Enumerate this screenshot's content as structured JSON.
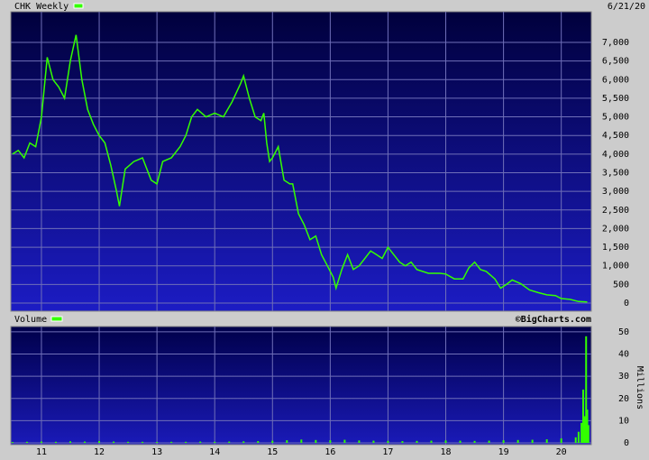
{
  "chart_data": [
    {
      "type": "line",
      "title": "CHK Weekly",
      "subtitle": "6/21/20",
      "color": "#33ff00",
      "grid": true,
      "x": [
        10.5,
        10.6,
        10.7,
        10.8,
        10.9,
        11.0,
        11.1,
        11.2,
        11.3,
        11.4,
        11.5,
        11.6,
        11.7,
        11.8,
        11.9,
        12.0,
        12.1,
        12.2,
        12.3,
        12.35,
        12.45,
        12.6,
        12.75,
        12.9,
        13.0,
        13.1,
        13.25,
        13.4,
        13.5,
        13.6,
        13.7,
        13.85,
        14.0,
        14.15,
        14.3,
        14.45,
        14.5,
        14.6,
        14.7,
        14.8,
        14.85,
        14.9,
        14.95,
        15.0,
        15.1,
        15.2,
        15.3,
        15.35,
        15.45,
        15.55,
        15.65,
        15.75,
        15.85,
        15.95,
        16.05,
        16.1,
        16.2,
        16.3,
        16.4,
        16.5,
        16.6,
        16.7,
        16.8,
        16.9,
        17.0,
        17.1,
        17.2,
        17.3,
        17.4,
        17.5,
        17.7,
        17.9,
        18.0,
        18.15,
        18.3,
        18.4,
        18.5,
        18.6,
        18.7,
        18.85,
        18.95,
        19.05,
        19.15,
        19.3,
        19.45,
        19.6,
        19.75,
        19.9,
        20.0,
        20.15,
        20.3,
        20.45
      ],
      "values": [
        4000,
        4100,
        3900,
        4300,
        4200,
        5000,
        6600,
        6000,
        5800,
        5500,
        6500,
        7200,
        6000,
        5200,
        4800,
        4500,
        4300,
        3700,
        3000,
        2600,
        3600,
        3800,
        3900,
        3300,
        3200,
        3800,
        3900,
        4200,
        4500,
        5000,
        5200,
        5000,
        5100,
        5000,
        5400,
        5900,
        6100,
        5500,
        5000,
        4900,
        5100,
        4300,
        3800,
        3900,
        4200,
        3300,
        3200,
        3200,
        2400,
        2100,
        1700,
        1800,
        1300,
        1000,
        700,
        400,
        900,
        1300,
        900,
        1000,
        1200,
        1400,
        1300,
        1200,
        1500,
        1300,
        1100,
        1000,
        1100,
        900,
        800,
        800,
        780,
        650,
        650,
        950,
        1100,
        900,
        850,
        650,
        400,
        500,
        620,
        520,
        350,
        280,
        220,
        200,
        120,
        100,
        40,
        30
      ],
      "xlim": [
        10.47,
        20.52
      ],
      "xticks": [
        11,
        12,
        13,
        14,
        15,
        16,
        17,
        18,
        19,
        20
      ],
      "ylim": [
        -218,
        7823
      ],
      "yticks": [
        0,
        500,
        {
          "value": 1000,
          "label": "1,000"
        },
        {
          "value": 1500,
          "label": "1,500"
        },
        {
          "value": 2000,
          "label": "2,000"
        },
        {
          "value": 2500,
          "label": "2,500"
        },
        {
          "value": 3000,
          "label": "3,000"
        },
        {
          "value": 3500,
          "label": "3,500"
        },
        {
          "value": 4000,
          "label": "4,000"
        },
        {
          "value": 4500,
          "label": "4,500"
        },
        {
          "value": 5000,
          "label": "5,000"
        },
        {
          "value": 5500,
          "label": "5,500"
        },
        {
          "value": 6000,
          "label": "6,000"
        },
        {
          "value": 6500,
          "label": "6,500"
        },
        {
          "value": 7000,
          "label": "7,000"
        }
      ]
    },
    {
      "type": "bar",
      "title": "Volume",
      "annotation": "©BigCharts.com",
      "y_label": "Millions",
      "color": "#33ff00",
      "grid": true,
      "x": [
        10.5,
        10.75,
        11,
        11.25,
        11.5,
        11.75,
        12,
        12.25,
        12.5,
        12.75,
        13,
        13.25,
        13.5,
        13.75,
        14,
        14.25,
        14.5,
        14.75,
        15,
        15.25,
        15.5,
        15.75,
        16,
        16.25,
        16.5,
        16.75,
        17,
        17.25,
        17.5,
        17.75,
        18,
        18.25,
        18.5,
        18.75,
        19,
        19.25,
        19.5,
        19.75,
        20,
        20.25,
        20.3,
        20.35,
        20.38,
        20.41,
        20.43,
        20.45,
        20.47
      ],
      "values": [
        0.4,
        0.5,
        0.6,
        0.5,
        0.7,
        0.6,
        0.8,
        0.6,
        0.5,
        0.5,
        0.4,
        0.5,
        0.5,
        0.6,
        0.5,
        0.6,
        0.7,
        0.8,
        1.0,
        1.2,
        1.5,
        1.3,
        1.2,
        1.4,
        1.1,
        1.0,
        0.9,
        0.8,
        0.9,
        1.0,
        1.1,
        1.0,
        0.9,
        1.0,
        1.2,
        1.3,
        1.4,
        1.6,
        2.0,
        2.5,
        5,
        9,
        24,
        12,
        48,
        15,
        8
      ],
      "xlim": [
        10.47,
        20.52
      ],
      "xticks": [
        11,
        12,
        13,
        14,
        15,
        16,
        17,
        18,
        19,
        20
      ],
      "ylim": [
        -0.8,
        52.4
      ],
      "yticks": [
        0,
        10,
        20,
        30,
        40,
        50
      ]
    }
  ]
}
